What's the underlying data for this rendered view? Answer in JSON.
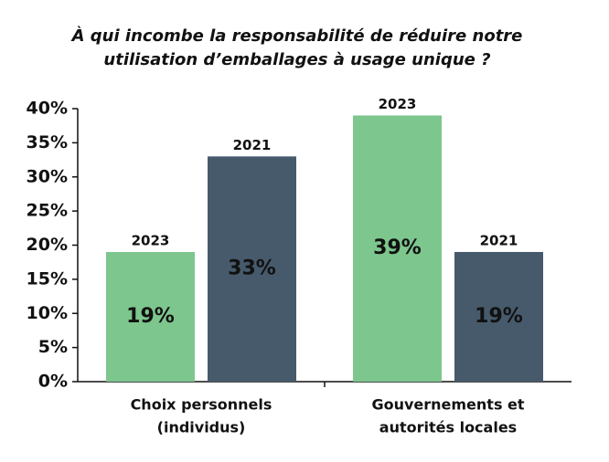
{
  "chart_data": {
    "type": "bar",
    "title": [
      "À qui incombe la responsabilité de réduire notre",
      "utilisation d’emballages à usage unique ?"
    ],
    "categories": [
      [
        "Choix personnels",
        "(individus)"
      ],
      [
        "Gouvernements et",
        "autorités locales"
      ]
    ],
    "series": [
      {
        "name": "2023",
        "color": "#7dc68e",
        "values": [
          19,
          39
        ],
        "value_labels": [
          "19%",
          "39%"
        ]
      },
      {
        "name": "2021",
        "color": "#465a6b",
        "values": [
          33,
          19
        ],
        "value_labels": [
          "33%",
          "19%"
        ]
      }
    ],
    "ylim": [
      0,
      40
    ],
    "yticks": [
      {
        "value": 0,
        "label": "0%"
      },
      {
        "value": 5,
        "label": "5%"
      },
      {
        "value": 10,
        "label": "10%"
      },
      {
        "value": 15,
        "label": "15%"
      },
      {
        "value": 20,
        "label": "20%"
      },
      {
        "value": 25,
        "label": "25%"
      },
      {
        "value": 30,
        "label": "30%"
      },
      {
        "value": 35,
        "label": "35%"
      },
      {
        "value": 40,
        "label": "40%"
      }
    ],
    "grid": false
  }
}
